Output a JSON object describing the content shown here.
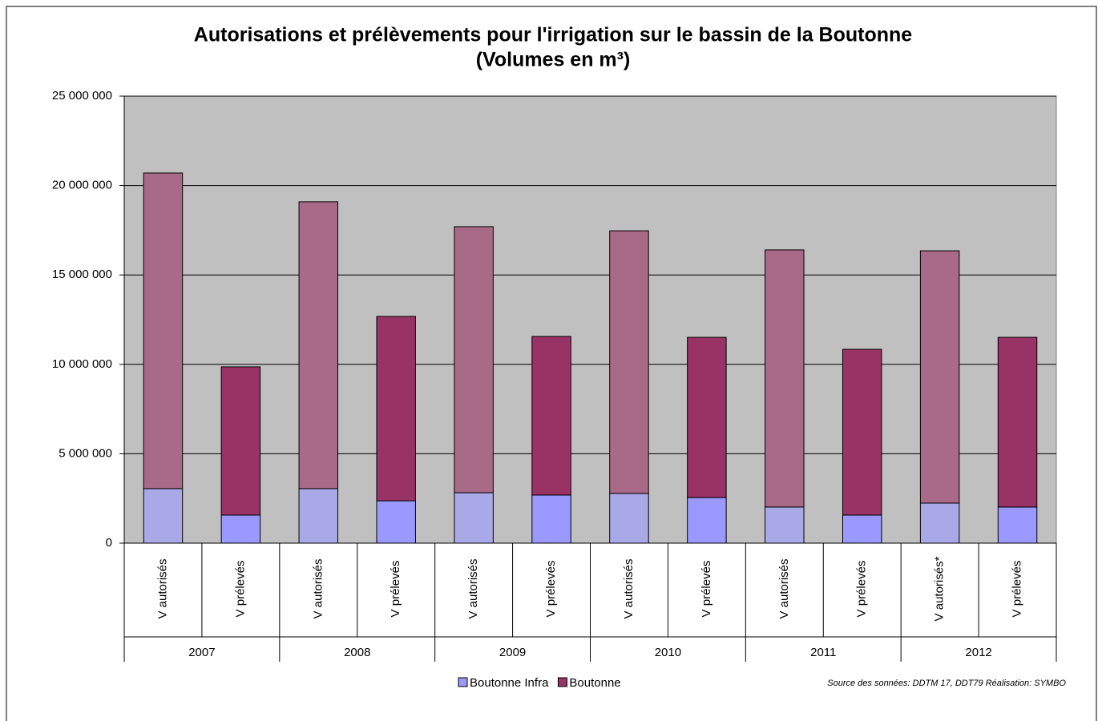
{
  "chart_data": {
    "type": "stacked_bar",
    "title": "Autorisations et prélèvements pour l'irrigation sur le bassin de la Boutonne",
    "subtitle": "(Volumes en m³)",
    "categories": [
      "V autorisés",
      "V prélevés",
      "V autorisés",
      "V prélevés",
      "V autorisés",
      "V prélevés",
      "V autorisés",
      "V prélevés",
      "V autorisés",
      "V prélevés",
      "V autorisés*",
      "V prélevés"
    ],
    "groups": [
      "2007",
      "2008",
      "2009",
      "2010",
      "2011",
      "2012"
    ],
    "series": [
      {
        "name": "Boutonne Infra",
        "color": "#9999ff",
        "colors": [
          "#a9a9e8",
          "#9999ff",
          "#a9a9e8",
          "#9999ff",
          "#a9a9e8",
          "#9999ff",
          "#a9a9e8",
          "#9999ff",
          "#a9a9e8",
          "#9999ff",
          "#a9a9e8",
          "#9999ff"
        ],
        "values": [
          3050000,
          1570000,
          3050000,
          2370000,
          2820000,
          2690000,
          2780000,
          2550000,
          2020000,
          1570000,
          2240000,
          2020000
        ]
      },
      {
        "name": "Boutonne",
        "color": "#993366",
        "colors": [
          "#a86a87",
          "#993366",
          "#a86a87",
          "#993366",
          "#a86a87",
          "#993366",
          "#a86a87",
          "#993366",
          "#a86a87",
          "#993366",
          "#a86a87",
          "#993366"
        ],
        "values": [
          17650000,
          8290000,
          16040000,
          10310000,
          14880000,
          8870000,
          14690000,
          8960000,
          14380000,
          9270000,
          14110000,
          9490000
        ]
      }
    ],
    "ylim": [
      0,
      25000000
    ],
    "yticks": [
      0,
      {
        "value": 5000000,
        "label": "5 000 000"
      },
      {
        "value": 10000000,
        "label": "10 000 000"
      },
      {
        "value": 15000000,
        "label": "15 000 000"
      },
      {
        "value": 20000000,
        "label": "20 000 000"
      },
      {
        "value": 25000000,
        "label": "25 000 000"
      }
    ],
    "grid": true,
    "plot_background": "#c0c0c0",
    "legend": "bottom",
    "source": "Source des sonnées: DDTM 17, DDT79 Réalisation: SYMBO"
  }
}
